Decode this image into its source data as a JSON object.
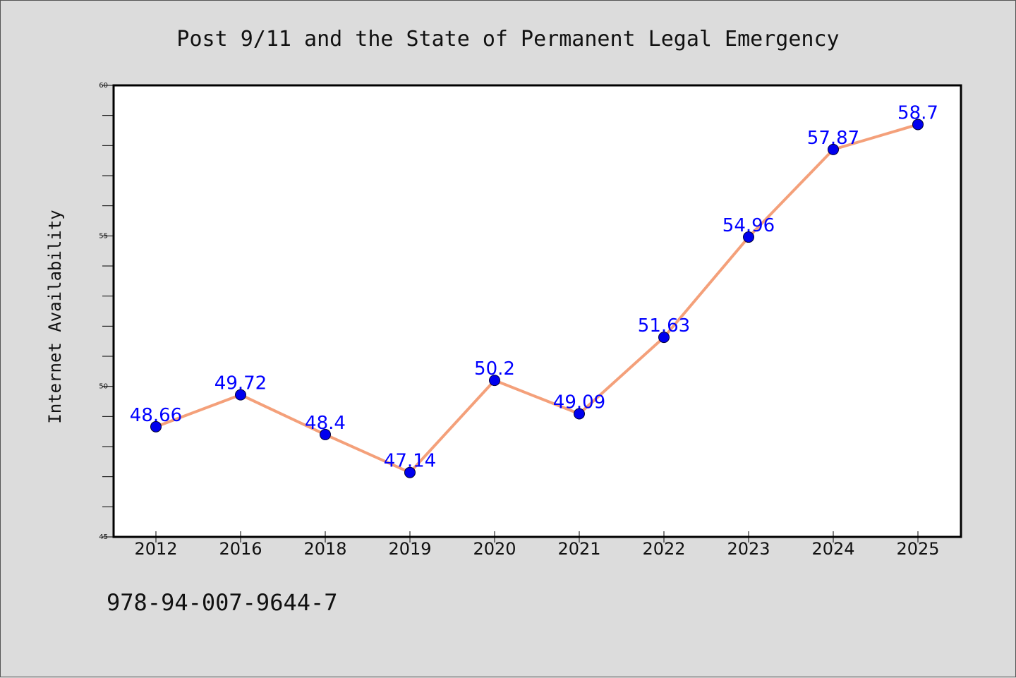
{
  "chart_data": {
    "type": "line",
    "title": "Post 9/11 and the State of Permanent Legal Emergency",
    "xlabel": "",
    "ylabel": "Internet Availability",
    "categories": [
      "2012",
      "2016",
      "2018",
      "2019",
      "2020",
      "2021",
      "2022",
      "2023",
      "2024",
      "2025"
    ],
    "series": [
      {
        "values": [
          48.66,
          49.72,
          48.4,
          47.14,
          50.2,
          49.09,
          51.63,
          54.96,
          57.87,
          58.7
        ],
        "labels": [
          "48.66",
          "49.72",
          "48.4",
          "47.14",
          "50.2",
          "49.09",
          "51.63",
          "54.96",
          "57.87",
          "58.7"
        ],
        "line_color": "#f4a07a",
        "marker_color": "#0000ee",
        "label_color": "#0000ff"
      }
    ],
    "ylim": [
      45,
      60
    ],
    "yticks": [
      "45",
      "50",
      "55",
      "60"
    ],
    "grid": false
  },
  "footer_text": "978-94-007-9644-7",
  "background_color": "#dcdcdc",
  "plot_background": "#ffffff"
}
